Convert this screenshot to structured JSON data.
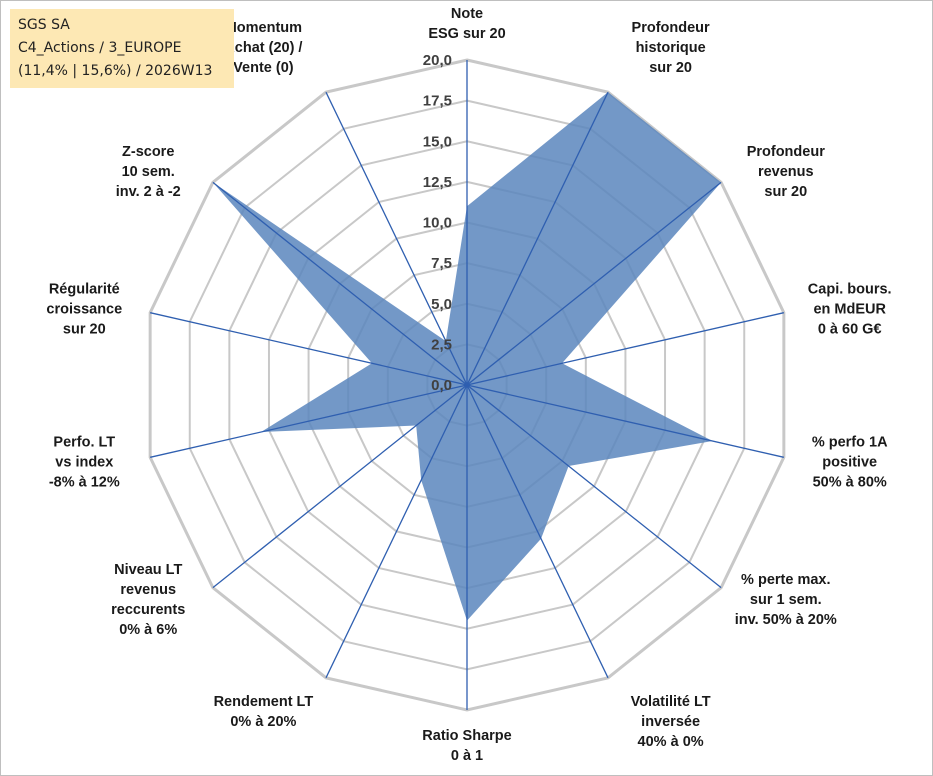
{
  "info_box": {
    "line1": "SGS SA",
    "line2": "C4_Actions / 3_EUROPE",
    "line3": "(11,4% | 15,6%) / 2026W13"
  },
  "colors": {
    "fill": "#5b86bd",
    "axis": "#2f5fb0",
    "grid": "#c8c8c8",
    "info_box_bg": "#fde8b4"
  },
  "chart_data": {
    "type": "radar",
    "title": "",
    "range": [
      0,
      20
    ],
    "grid_step": 2.5,
    "tick_labels": [
      "0,0",
      "2,5",
      "5,0",
      "7,5",
      "10,0",
      "12,5",
      "15,0",
      "17,5",
      "20,0"
    ],
    "axes": [
      {
        "label": [
          "Note",
          "ESG sur 20"
        ],
        "value": 11.0
      },
      {
        "label": [
          "Profondeur",
          "historique",
          "sur 20"
        ],
        "value": 20.0
      },
      {
        "label": [
          "Profondeur",
          "revenus",
          "sur 20"
        ],
        "value": 20.0
      },
      {
        "label": [
          "Capi. bours.",
          "en MdEUR",
          "0 à 60 G€"
        ],
        "value": 6.0
      },
      {
        "label": [
          "% perfo 1A",
          "positive",
          "50% à 80%"
        ],
        "value": 15.5
      },
      {
        "label": [
          "% perte max.",
          "sur 1 sem.",
          "inv. 50% à 20%"
        ],
        "value": 8.0
      },
      {
        "label": [
          "Volatilité LT",
          "inversée",
          "40% à 0%"
        ],
        "value": 10.5
      },
      {
        "label": [
          "Ratio Sharpe",
          "0 à 1"
        ],
        "value": 14.5
      },
      {
        "label": [
          "Rendement LT",
          "0% à 20%"
        ],
        "value": 6.5
      },
      {
        "label": [
          "Niveau LT",
          "revenus",
          "reccurents",
          "0% à 6%"
        ],
        "value": 4.0
      },
      {
        "label": [
          "Perfo. LT",
          "vs index",
          "-8% à 12%"
        ],
        "value": 13.0
      },
      {
        "label": [
          "Régularité",
          "croissance",
          "sur 20"
        ],
        "value": 6.0
      },
      {
        "label": [
          "Z-score",
          "10 sem.",
          "inv. 2 à -2"
        ],
        "value": 20.0
      },
      {
        "label": [
          "Momentum",
          "Achat (20) /",
          "Vente (0)"
        ],
        "value": 3.0
      }
    ]
  }
}
